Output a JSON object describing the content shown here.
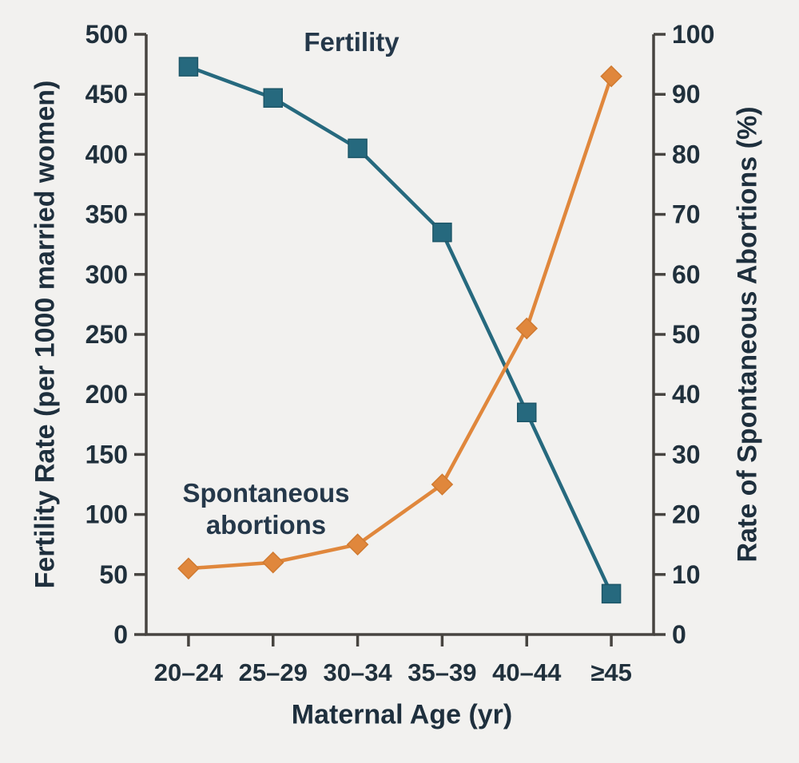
{
  "chart_data": {
    "type": "line",
    "title": "",
    "categories": [
      "20–24",
      "25–29",
      "30–34",
      "35–39",
      "40–44",
      "≥45"
    ],
    "xlabel": "Maternal Age (yr)",
    "grid": false,
    "legend_position": "inline-annotations",
    "left_axis": {
      "label": "Fertility Rate (per 1000 married women)",
      "min": 0,
      "max": 500,
      "ticks": [
        0,
        50,
        100,
        150,
        200,
        250,
        300,
        350,
        400,
        450,
        500
      ]
    },
    "right_axis": {
      "label": "Rate of Spontaneous Abortions (%)",
      "min": 0,
      "max": 100,
      "ticks": [
        0,
        10,
        20,
        30,
        40,
        50,
        60,
        70,
        80,
        90,
        100
      ]
    },
    "series": [
      {
        "name": "Fertility",
        "axis": "left",
        "label": "Fertility",
        "label_lines": [
          "Fertility"
        ],
        "marker": "square",
        "color": "#26697e",
        "edge_color": "#1d5668",
        "values": [
          473,
          447,
          405,
          335,
          185,
          34
        ]
      },
      {
        "name": "Spontaneous abortions",
        "axis": "right",
        "label": "Spontaneous abortions",
        "label_lines": [
          "Spontaneous",
          "abortions"
        ],
        "marker": "diamond",
        "color": "#e0873c",
        "edge_color": "#d07a30",
        "values": [
          11,
          12,
          15,
          25,
          51,
          93
        ]
      }
    ]
  },
  "colors": {
    "background": "#f2f1ef",
    "axis": "#474440",
    "tick_text": "#20303c",
    "fertility": "#26697e",
    "abortions": "#e0873c"
  }
}
